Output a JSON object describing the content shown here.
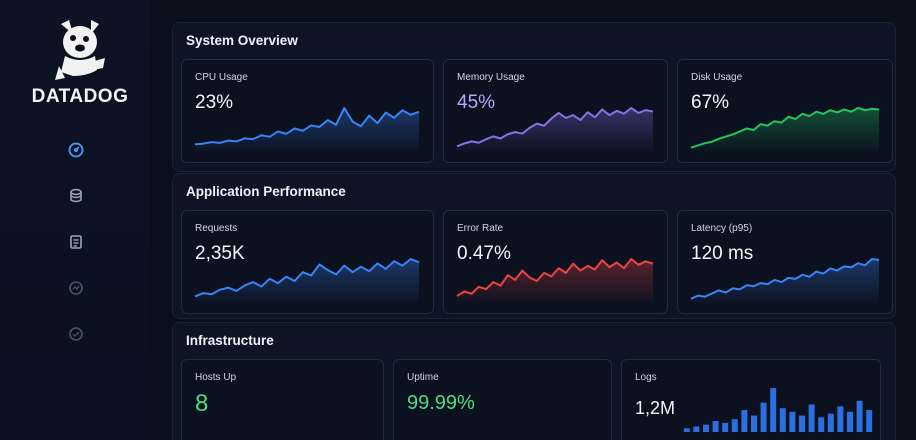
{
  "sidebar": {
    "logo_text": "DATADOG",
    "nav": [
      {
        "icon": "dashboard-icon",
        "color": "#4a8ff0"
      },
      {
        "icon": "database-icon",
        "color": "#9aa3b5"
      },
      {
        "icon": "logs-icon",
        "color": "#9aa3b5"
      },
      {
        "icon": "monitor-icon",
        "color": "#4a5366"
      },
      {
        "icon": "settings-icon",
        "color": "#4a5366"
      }
    ]
  },
  "system_overview": {
    "title": "System Overview",
    "cards": [
      {
        "label": "CPU Usage",
        "value": "23%",
        "color": "#3b82f6",
        "series": [
          10,
          11,
          13,
          12,
          15,
          14,
          18,
          17,
          22,
          20,
          27,
          24,
          31,
          28,
          35,
          33,
          42,
          36,
          58,
          40,
          34,
          48,
          38,
          52,
          45,
          55,
          49,
          53
        ]
      },
      {
        "label": "Memory Usage",
        "value": "45%",
        "color": "#8b6fe8",
        "series": [
          8,
          12,
          15,
          13,
          18,
          22,
          19,
          25,
          28,
          26,
          34,
          40,
          37,
          47,
          55,
          48,
          52,
          45,
          56,
          49,
          60,
          52,
          58,
          54,
          62,
          55,
          59,
          57
        ]
      },
      {
        "label": "Disk Usage",
        "value": "67%",
        "color": "#22c55e",
        "series": [
          6,
          9,
          12,
          14,
          18,
          21,
          24,
          28,
          32,
          30,
          38,
          36,
          42,
          40,
          48,
          45,
          52,
          49,
          55,
          52,
          57,
          54,
          58,
          55,
          60,
          57,
          59,
          58
        ]
      }
    ]
  },
  "app_performance": {
    "title": "Application Performance",
    "cards": [
      {
        "label": "Requests",
        "value": "2,35K",
        "color": "#3b82f6",
        "series": [
          6,
          9,
          8,
          12,
          14,
          11,
          16,
          19,
          15,
          22,
          18,
          24,
          20,
          28,
          25,
          35,
          30,
          26,
          34,
          28,
          33,
          29,
          36,
          31,
          38,
          34,
          40,
          37
        ]
      },
      {
        "label": "Error Rate",
        "value": "0.47%",
        "color": "#ef4444",
        "series": [
          6,
          10,
          8,
          14,
          12,
          18,
          15,
          24,
          20,
          28,
          22,
          19,
          26,
          23,
          30,
          26,
          34,
          28,
          32,
          29,
          37,
          31,
          35,
          30,
          38,
          33,
          36,
          34
        ]
      },
      {
        "label": "Latency (p95)",
        "value": "120 ms",
        "color": "#3b82f6",
        "series": [
          4,
          7,
          6,
          9,
          12,
          10,
          14,
          13,
          17,
          16,
          19,
          18,
          22,
          20,
          24,
          23,
          27,
          25,
          30,
          28,
          33,
          31,
          35,
          34,
          38,
          36,
          42,
          41
        ]
      }
    ]
  },
  "infrastructure": {
    "title": "Infrastructure",
    "hosts": {
      "label": "Hosts Up",
      "value": "8",
      "color": "#4ade80"
    },
    "uptime": {
      "label": "Uptime",
      "value": "99.99%",
      "color": "#4ade80"
    },
    "logs": {
      "label": "Logs",
      "value": "1,2M",
      "color": "#2a6fe0",
      "bars": [
        2,
        3,
        4,
        6,
        5,
        7,
        12,
        9,
        16,
        24,
        13,
        11,
        9,
        15,
        8,
        10,
        14,
        11,
        17,
        12
      ]
    }
  }
}
